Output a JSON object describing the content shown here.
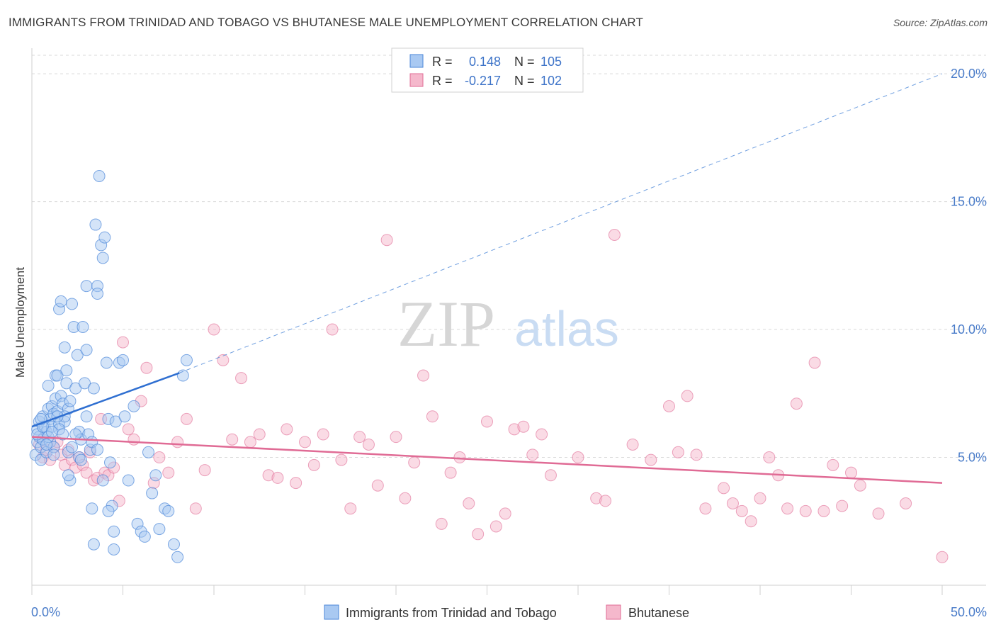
{
  "title": "IMMIGRANTS FROM TRINIDAD AND TOBAGO VS BHUTANESE MALE UNEMPLOYMENT CORRELATION CHART",
  "source": "Source: ZipAtlas.com",
  "watermark": {
    "zip": "ZIP",
    "atlas": "atlas"
  },
  "colors": {
    "blue": "#4a86d8",
    "blue_fill": "#a9c9f2",
    "pink": "#e06b95",
    "pink_fill": "#f5b8cc",
    "axis_text": "#4a7cc9",
    "grid": "#d9d9d9"
  },
  "stats": [
    {
      "r_label": "R =",
      "r_value": "0.148",
      "n_label": "N =",
      "n_value": "105"
    },
    {
      "r_label": "R =",
      "r_value": "-0.217",
      "n_label": "N =",
      "n_value": "102"
    }
  ],
  "chart_data": {
    "type": "scatter",
    "title": "IMMIGRANTS FROM TRINIDAD AND TOBAGO VS BHUTANESE MALE UNEMPLOYMENT CORRELATION CHART",
    "xlabel": "",
    "ylabel": "Male Unemployment",
    "xlim": [
      0,
      50
    ],
    "ylim": [
      0,
      21
    ],
    "x_tick_labels": [
      "0.0%",
      "50.0%"
    ],
    "y_ticks": [
      5,
      10,
      15,
      20
    ],
    "y_tick_labels": [
      "5.0%",
      "10.0%",
      "15.0%",
      "20.0%"
    ],
    "legend": [
      "Immigrants from Trinidad and Tobago",
      "Bhutanese"
    ],
    "series": [
      {
        "name": "Immigrants from Trinidad and Tobago",
        "color": "#4a86d8",
        "trend": {
          "x0": 0,
          "y0": 6.2,
          "x1": 8.1,
          "y1": 8.3,
          "dashed_to_x": 50,
          "dashed_to_y": 20.0
        },
        "points": [
          [
            0.2,
            5.1
          ],
          [
            0.3,
            5.6
          ],
          [
            0.3,
            6.1
          ],
          [
            0.4,
            5.8
          ],
          [
            0.4,
            6.4
          ],
          [
            0.5,
            5.4
          ],
          [
            0.5,
            4.9
          ],
          [
            0.6,
            6.6
          ],
          [
            0.6,
            5.7
          ],
          [
            0.7,
            6.2
          ],
          [
            0.8,
            6.0
          ],
          [
            0.8,
            5.2
          ],
          [
            0.9,
            7.8
          ],
          [
            0.9,
            6.9
          ],
          [
            1.0,
            6.5
          ],
          [
            1.0,
            5.6
          ],
          [
            1.1,
            7.0
          ],
          [
            1.1,
            6.2
          ],
          [
            1.2,
            6.7
          ],
          [
            1.2,
            5.4
          ],
          [
            1.3,
            8.2
          ],
          [
            1.3,
            7.3
          ],
          [
            1.4,
            8.2
          ],
          [
            1.4,
            6.8
          ],
          [
            1.5,
            6.3
          ],
          [
            1.5,
            10.8
          ],
          [
            1.6,
            11.1
          ],
          [
            1.6,
            7.4
          ],
          [
            1.7,
            7.1
          ],
          [
            1.8,
            6.4
          ],
          [
            1.8,
            9.3
          ],
          [
            1.9,
            8.4
          ],
          [
            1.9,
            7.9
          ],
          [
            2.0,
            6.9
          ],
          [
            2.0,
            5.2
          ],
          [
            2.1,
            4.1
          ],
          [
            2.2,
            11.0
          ],
          [
            2.2,
            5.4
          ],
          [
            2.3,
            10.1
          ],
          [
            2.4,
            7.7
          ],
          [
            2.5,
            9.0
          ],
          [
            2.6,
            6.0
          ],
          [
            2.6,
            5.0
          ],
          [
            2.7,
            5.7
          ],
          [
            2.8,
            10.1
          ],
          [
            2.9,
            7.9
          ],
          [
            3.0,
            11.7
          ],
          [
            3.0,
            9.2
          ],
          [
            3.1,
            5.9
          ],
          [
            3.2,
            5.3
          ],
          [
            3.3,
            3.0
          ],
          [
            3.4,
            7.7
          ],
          [
            3.4,
            1.6
          ],
          [
            3.5,
            14.1
          ],
          [
            3.6,
            11.7
          ],
          [
            3.6,
            11.4
          ],
          [
            3.7,
            16.0
          ],
          [
            3.8,
            13.3
          ],
          [
            3.9,
            12.8
          ],
          [
            4.0,
            13.6
          ],
          [
            4.1,
            8.7
          ],
          [
            4.2,
            6.5
          ],
          [
            4.3,
            4.8
          ],
          [
            4.4,
            3.1
          ],
          [
            4.5,
            1.4
          ],
          [
            4.6,
            6.4
          ],
          [
            4.8,
            8.7
          ],
          [
            5.0,
            8.8
          ],
          [
            5.1,
            6.6
          ],
          [
            5.3,
            4.1
          ],
          [
            5.6,
            7.0
          ],
          [
            5.8,
            2.4
          ],
          [
            6.0,
            2.1
          ],
          [
            6.2,
            1.9
          ],
          [
            6.4,
            5.2
          ],
          [
            6.6,
            3.6
          ],
          [
            6.8,
            4.3
          ],
          [
            7.0,
            2.2
          ],
          [
            7.3,
            3.0
          ],
          [
            7.5,
            2.9
          ],
          [
            7.8,
            1.6
          ],
          [
            8.0,
            1.1
          ],
          [
            8.3,
            8.2
          ],
          [
            8.5,
            8.8
          ],
          [
            0.3,
            5.9
          ],
          [
            0.6,
            6.2
          ],
          [
            0.9,
            5.8
          ],
          [
            1.2,
            5.1
          ],
          [
            1.5,
            6.1
          ],
          [
            1.8,
            6.6
          ],
          [
            2.1,
            7.2
          ],
          [
            2.4,
            5.9
          ],
          [
            2.7,
            4.9
          ],
          [
            3.0,
            6.6
          ],
          [
            3.3,
            5.6
          ],
          [
            3.6,
            5.3
          ],
          [
            3.9,
            4.1
          ],
          [
            4.2,
            2.9
          ],
          [
            4.5,
            2.1
          ],
          [
            0.5,
            6.5
          ],
          [
            0.8,
            5.5
          ],
          [
            1.1,
            6.0
          ],
          [
            1.4,
            6.6
          ],
          [
            1.7,
            5.9
          ],
          [
            2.0,
            4.3
          ]
        ]
      },
      {
        "name": "Bhutanese",
        "color": "#e06b95",
        "trend": {
          "x0": 0,
          "y0": 5.8,
          "x1": 50,
          "y1": 4.0
        },
        "points": [
          [
            0.4,
            5.5
          ],
          [
            0.6,
            5.0
          ],
          [
            0.8,
            5.3
          ],
          [
            1.0,
            4.9
          ],
          [
            1.2,
            5.4
          ],
          [
            1.4,
            5.6
          ],
          [
            1.6,
            5.1
          ],
          [
            1.8,
            4.7
          ],
          [
            2.0,
            5.3
          ],
          [
            2.2,
            4.9
          ],
          [
            2.4,
            4.6
          ],
          [
            2.6,
            5.0
          ],
          [
            2.8,
            4.7
          ],
          [
            3.0,
            4.4
          ],
          [
            3.2,
            5.2
          ],
          [
            3.4,
            4.1
          ],
          [
            3.6,
            4.2
          ],
          [
            3.8,
            6.5
          ],
          [
            4.0,
            4.4
          ],
          [
            4.2,
            4.3
          ],
          [
            4.5,
            4.6
          ],
          [
            4.8,
            3.3
          ],
          [
            5.0,
            9.5
          ],
          [
            5.3,
            6.1
          ],
          [
            5.6,
            5.7
          ],
          [
            6.0,
            7.2
          ],
          [
            6.3,
            8.5
          ],
          [
            6.7,
            4.0
          ],
          [
            7.0,
            5.0
          ],
          [
            7.5,
            4.4
          ],
          [
            8.0,
            5.6
          ],
          [
            8.5,
            6.5
          ],
          [
            9.0,
            3.0
          ],
          [
            9.5,
            4.5
          ],
          [
            10.0,
            10.0
          ],
          [
            10.5,
            8.8
          ],
          [
            11.0,
            5.7
          ],
          [
            11.5,
            8.1
          ],
          [
            12.0,
            5.6
          ],
          [
            12.5,
            5.9
          ],
          [
            13.0,
            4.3
          ],
          [
            13.5,
            4.2
          ],
          [
            14.0,
            6.1
          ],
          [
            14.5,
            4.0
          ],
          [
            15.0,
            5.6
          ],
          [
            15.5,
            4.7
          ],
          [
            16.0,
            5.9
          ],
          [
            16.5,
            10.0
          ],
          [
            17.0,
            4.9
          ],
          [
            17.5,
            3.0
          ],
          [
            18.0,
            5.8
          ],
          [
            18.5,
            5.5
          ],
          [
            19.0,
            3.9
          ],
          [
            19.5,
            13.5
          ],
          [
            20.0,
            5.8
          ],
          [
            20.5,
            3.4
          ],
          [
            21.0,
            4.8
          ],
          [
            21.5,
            8.2
          ],
          [
            22.0,
            6.6
          ],
          [
            22.5,
            2.4
          ],
          [
            23.0,
            4.4
          ],
          [
            23.5,
            5.0
          ],
          [
            24.0,
            3.2
          ],
          [
            24.5,
            2.0
          ],
          [
            25.0,
            6.4
          ],
          [
            25.5,
            2.3
          ],
          [
            26.0,
            2.8
          ],
          [
            26.5,
            6.1
          ],
          [
            27.0,
            6.2
          ],
          [
            27.5,
            5.1
          ],
          [
            28.0,
            5.9
          ],
          [
            28.5,
            4.3
          ],
          [
            30.0,
            5.0
          ],
          [
            31.0,
            3.4
          ],
          [
            31.5,
            3.3
          ],
          [
            32.0,
            13.7
          ],
          [
            33.0,
            5.5
          ],
          [
            34.0,
            4.9
          ],
          [
            35.0,
            7.0
          ],
          [
            35.5,
            5.2
          ],
          [
            36.0,
            7.4
          ],
          [
            36.5,
            5.1
          ],
          [
            37.0,
            3.0
          ],
          [
            38.0,
            3.8
          ],
          [
            38.5,
            3.2
          ],
          [
            39.0,
            2.9
          ],
          [
            39.5,
            2.5
          ],
          [
            40.0,
            3.4
          ],
          [
            40.5,
            5.0
          ],
          [
            41.0,
            4.3
          ],
          [
            41.5,
            3.0
          ],
          [
            42.0,
            7.1
          ],
          [
            42.5,
            2.9
          ],
          [
            43.0,
            8.7
          ],
          [
            43.5,
            2.9
          ],
          [
            44.0,
            4.7
          ],
          [
            44.5,
            3.1
          ],
          [
            45.0,
            4.4
          ],
          [
            45.5,
            3.9
          ],
          [
            46.5,
            2.8
          ],
          [
            48.0,
            3.2
          ],
          [
            50.0,
            1.1
          ]
        ]
      }
    ]
  }
}
